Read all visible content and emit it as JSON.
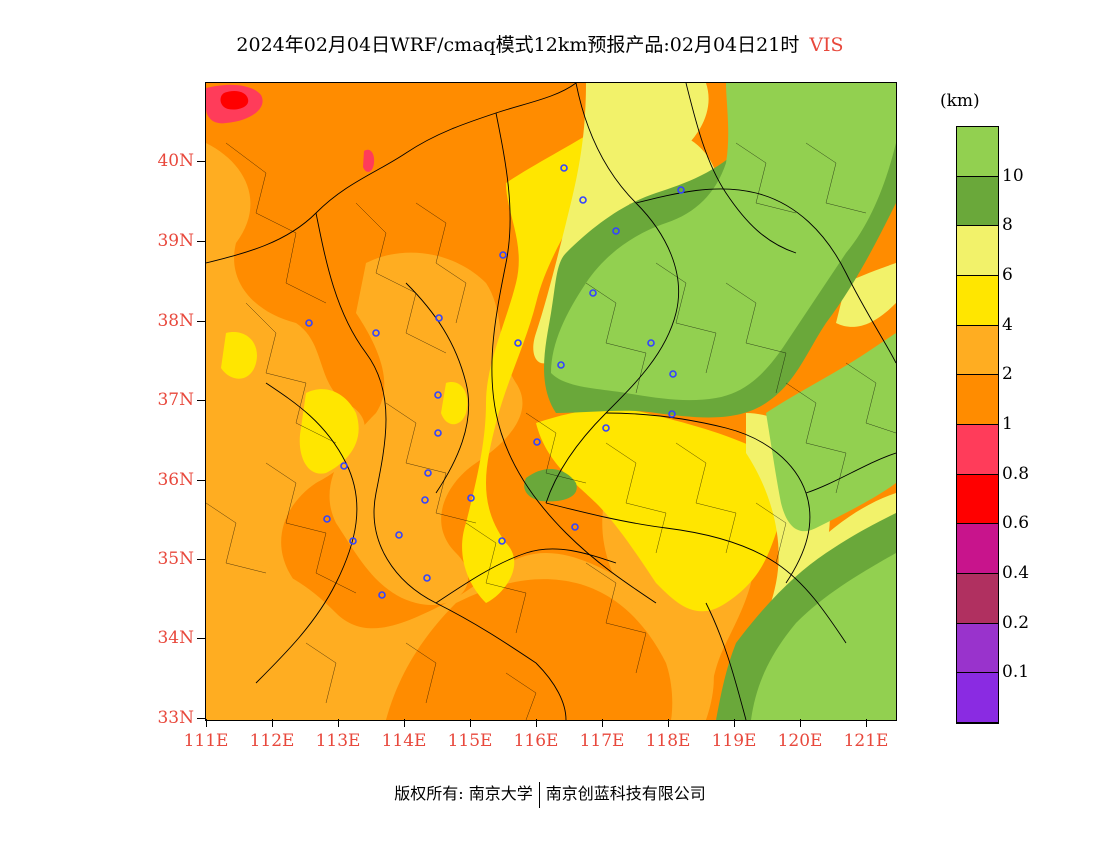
{
  "title": {
    "main": "2024年02月04日WRF/cmaq模式12km预报产品:02月04日21时",
    "variable": "VIS"
  },
  "axes": {
    "lat_labels": [
      "40N",
      "39N",
      "38N",
      "37N",
      "36N",
      "35N",
      "34N",
      "33N"
    ],
    "lon_labels": [
      "111E",
      "112E",
      "113E",
      "114E",
      "115E",
      "116E",
      "117E",
      "118E",
      "119E",
      "120E",
      "121E"
    ]
  },
  "legend": {
    "unit": "(km)",
    "levels": [
      {
        "label": "",
        "color": "#92d050"
      },
      {
        "label": "10",
        "color": "#6aa83a"
      },
      {
        "label": "8",
        "color": "#f2f26a"
      },
      {
        "label": "6",
        "color": "#ffe600"
      },
      {
        "label": "4",
        "color": "#ffad21"
      },
      {
        "label": "2",
        "color": "#ff8c00"
      },
      {
        "label": "1",
        "color": "#ff3c5a"
      },
      {
        "label": "0.8",
        "color": "#ff0000"
      },
      {
        "label": "0.6",
        "color": "#c8148c"
      },
      {
        "label": "0.4",
        "color": "#b03060"
      },
      {
        "label": "0.2",
        "color": "#9933cc"
      },
      {
        "label": "0.1",
        "color": "#8a2be2"
      }
    ]
  },
  "footer": {
    "copyright": "版权所有: 南京大学",
    "company": "南京创蓝科技有限公司"
  },
  "map": {
    "colors": {
      "orange": "#ff8c00",
      "light_orange": "#ffad21",
      "yellow": "#ffe600",
      "pale_yellow": "#f2f26a",
      "dark_green": "#6aa83a",
      "green": "#92d050",
      "red_pink": "#ff3c5a",
      "red": "#ff0000",
      "city_marker": "#3344ff",
      "boundary": "#000000"
    },
    "city_markers": 29
  }
}
